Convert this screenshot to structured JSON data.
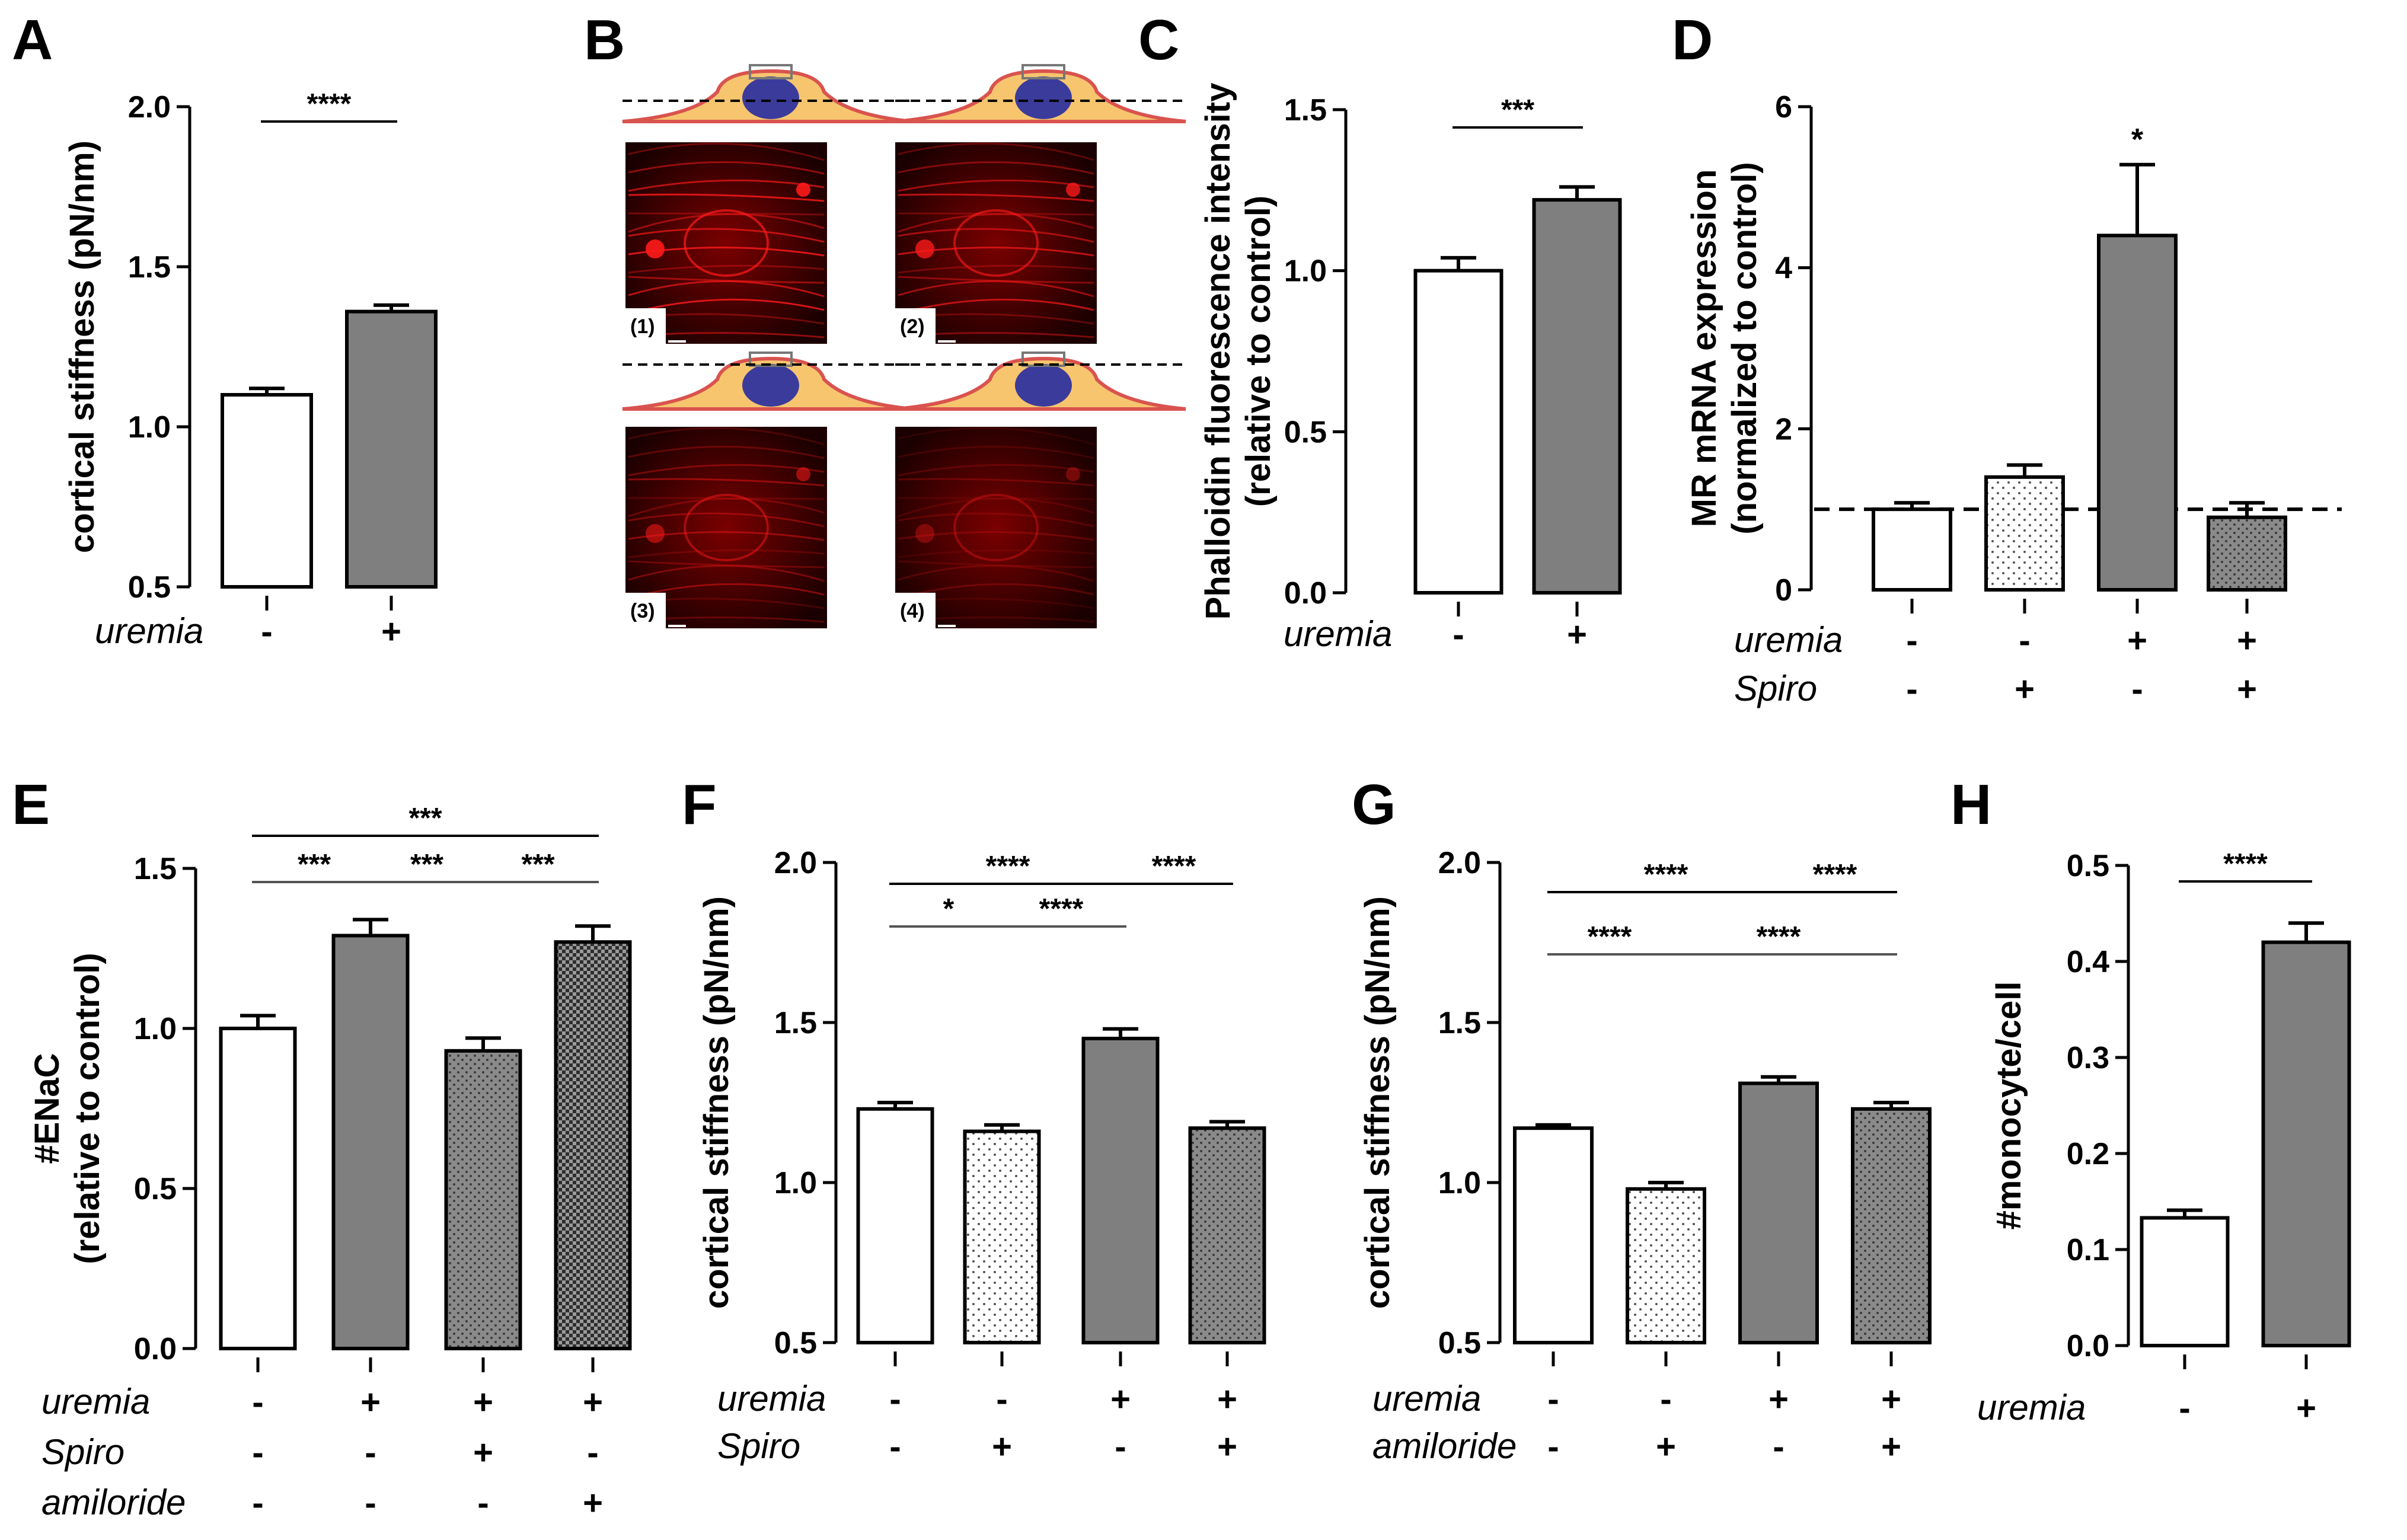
{
  "panels": [
    {
      "letter": "A",
      "type": "bar",
      "ylabel": "cortical stiffness (pN/nm)",
      "ylim": [
        0.5,
        2.0
      ],
      "yticks": [
        "0.5",
        "1.0",
        "1.5",
        "2.0"
      ],
      "bars": [
        {
          "value": 1.1,
          "err": 0.02,
          "fill": "white"
        },
        {
          "value": 1.36,
          "err": 0.02,
          "fill": "gray"
        }
      ],
      "conditions": [
        {
          "name": "uremia",
          "marks": [
            "-",
            "+"
          ]
        }
      ],
      "sig": [
        {
          "from": 0,
          "to": 1,
          "level": 0,
          "label": "****"
        }
      ]
    },
    {
      "letter": "C",
      "type": "bar",
      "ylabel": [
        "Phalloidin fluorescence intensity",
        "(relative to control)"
      ],
      "ylim": [
        0,
        1.5
      ],
      "yticks": [
        "0.0",
        "0.5",
        "1.0",
        "1.5"
      ],
      "bars": [
        {
          "value": 1.0,
          "err": 0.04,
          "fill": "white"
        },
        {
          "value": 1.22,
          "err": 0.04,
          "fill": "gray"
        }
      ],
      "conditions": [
        {
          "name": "uremia",
          "marks": [
            "-",
            "+"
          ]
        }
      ],
      "sig": [
        {
          "from": 0,
          "to": 1,
          "level": 0,
          "label": "***"
        }
      ]
    },
    {
      "letter": "D",
      "type": "bar",
      "ylabel": [
        "MR mRNA expression",
        "(normalized to control)"
      ],
      "ylim": [
        0,
        6
      ],
      "yticks": [
        "0",
        "2",
        "4",
        "6"
      ],
      "refline": 1.0,
      "bars": [
        {
          "value": 1.0,
          "err": 0.08,
          "fill": "white"
        },
        {
          "value": 1.4,
          "err": 0.15,
          "fill": "dots"
        },
        {
          "value": 4.4,
          "err": 0.88,
          "fill": "gray",
          "star": "*"
        },
        {
          "value": 0.9,
          "err": 0.18,
          "fill": "graydots"
        }
      ],
      "conditions": [
        {
          "name": "uremia",
          "marks": [
            "-",
            "-",
            "+",
            "+"
          ]
        },
        {
          "name": "Spiro",
          "marks": [
            "-",
            "+",
            "-",
            "+"
          ]
        }
      ],
      "sig": []
    },
    {
      "letter": "E",
      "type": "bar",
      "ylabel": [
        "#ENaC",
        "(relative to control)"
      ],
      "ylim": [
        0,
        1.5
      ],
      "yticks": [
        "0.0",
        "0.5",
        "1.0",
        "1.5"
      ],
      "bars": [
        {
          "value": 1.0,
          "err": 0.04,
          "fill": "white"
        },
        {
          "value": 1.29,
          "err": 0.05,
          "fill": "gray"
        },
        {
          "value": 0.93,
          "err": 0.04,
          "fill": "graydots"
        },
        {
          "value": 1.27,
          "err": 0.05,
          "fill": "check"
        }
      ],
      "conditions": [
        {
          "name": "uremia",
          "marks": [
            "-",
            "+",
            "+",
            "+"
          ]
        },
        {
          "name": "Spiro",
          "marks": [
            "-",
            "-",
            "+",
            "-"
          ]
        },
        {
          "name": "amiloride",
          "marks": [
            "-",
            "-",
            "-",
            "+"
          ]
        }
      ],
      "sig": [
        {
          "from": 0,
          "to": 1,
          "level": 0,
          "label": "***"
        },
        {
          "from": 1,
          "to": 2,
          "level": 0,
          "label": "***"
        },
        {
          "from": 2,
          "to": 3,
          "level": 0,
          "label": "***"
        },
        {
          "from": 0,
          "to": 3,
          "level": 1,
          "label": "***"
        }
      ]
    },
    {
      "letter": "F",
      "type": "bar",
      "ylabel": "cortical stiffness (pN/nm)",
      "ylim": [
        0.5,
        2.0
      ],
      "yticks": [
        "0.5",
        "1.0",
        "1.5",
        "2.0"
      ],
      "bars": [
        {
          "value": 1.23,
          "err": 0.02,
          "fill": "white"
        },
        {
          "value": 1.16,
          "err": 0.02,
          "fill": "dots"
        },
        {
          "value": 1.45,
          "err": 0.03,
          "fill": "gray"
        },
        {
          "value": 1.17,
          "err": 0.02,
          "fill": "graydots"
        }
      ],
      "conditions": [
        {
          "name": "uremia",
          "marks": [
            "-",
            "-",
            "+",
            "+"
          ]
        },
        {
          "name": "Spiro",
          "marks": [
            "-",
            "+",
            "-",
            "+"
          ]
        }
      ],
      "sig": [
        {
          "from": 0,
          "to": 1,
          "level": 0,
          "label": "*"
        },
        {
          "from": 1,
          "to": 2,
          "level": 0,
          "label": "****"
        },
        {
          "from": 0,
          "to": 2,
          "level": 1,
          "label": "****"
        },
        {
          "from": 2,
          "to": 3,
          "level": 1,
          "label": "****"
        }
      ]
    },
    {
      "letter": "G",
      "type": "bar",
      "ylabel": "cortical stiffness (pN/nm)",
      "ylim": [
        0.5,
        2.0
      ],
      "yticks": [
        "0.5",
        "1.0",
        "1.5",
        "2.0"
      ],
      "bars": [
        {
          "value": 1.17,
          "err": 0.01,
          "fill": "white"
        },
        {
          "value": 0.98,
          "err": 0.02,
          "fill": "dots"
        },
        {
          "value": 1.31,
          "err": 0.02,
          "fill": "gray"
        },
        {
          "value": 1.23,
          "err": 0.02,
          "fill": "graydots"
        }
      ],
      "conditions": [
        {
          "name": "uremia",
          "marks": [
            "-",
            "-",
            "+",
            "+"
          ]
        },
        {
          "name": "amiloride",
          "marks": [
            "-",
            "+",
            "-",
            "+"
          ]
        }
      ],
      "sig": [
        {
          "from": 0,
          "to": 1,
          "level": 0,
          "label": "****"
        },
        {
          "from": 1,
          "to": 3,
          "level": 0,
          "label": "****"
        },
        {
          "from": 0,
          "to": 2,
          "level": 1,
          "label": "****"
        },
        {
          "from": 2,
          "to": 3,
          "level": 1,
          "label": "****"
        }
      ]
    },
    {
      "letter": "H",
      "type": "bar",
      "ylabel": "#monocyte/cell",
      "ylim": [
        0,
        0.5
      ],
      "yticks": [
        "0.0",
        "0.1",
        "0.2",
        "0.3",
        "0.4",
        "0.5"
      ],
      "bars": [
        {
          "value": 0.133,
          "err": 0.008,
          "fill": "white"
        },
        {
          "value": 0.42,
          "err": 0.02,
          "fill": "gray"
        }
      ],
      "conditions": [
        {
          "name": "uremia",
          "marks": [
            "-",
            "+"
          ]
        }
      ],
      "sig": [
        {
          "from": 0,
          "to": 1,
          "level": 0,
          "label": "****"
        }
      ]
    }
  ],
  "panel_b": {
    "letter": "B",
    "images": [
      {
        "label": "(1)",
        "brightness": 1.0
      },
      {
        "label": "(2)",
        "brightness": 0.85
      },
      {
        "label": "(3)",
        "brightness": 0.55
      },
      {
        "label": "(4)",
        "brightness": 0.3
      }
    ]
  },
  "colors": {
    "gray": "#7f7f7f",
    "ink": "#000000",
    "fluor": "#ff1a1a",
    "cell": "#f6c56e",
    "nucleus": "#3b3b9c",
    "membrane": "#d9534f"
  }
}
